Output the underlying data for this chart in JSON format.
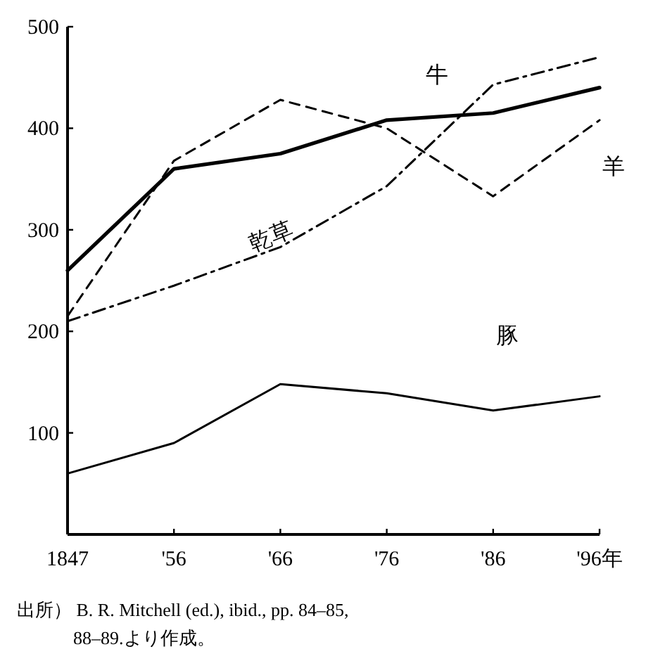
{
  "chart_data": {
    "type": "line",
    "categories": [
      "1847",
      "'56",
      "'66",
      "'76",
      "'86",
      "'96年"
    ],
    "series": [
      {
        "name": "牛",
        "color": "#000000",
        "line_style": "solid",
        "values": [
          260,
          360,
          375,
          408,
          415,
          440
        ]
      },
      {
        "name": "羊",
        "color": "#000000",
        "line_style": "dashed",
        "values": [
          215,
          368,
          428,
          400,
          333,
          408
        ]
      },
      {
        "name": "乾草",
        "color": "#000000",
        "line_style": "dashdot",
        "values": [
          210,
          245,
          283,
          343,
          443,
          470
        ]
      },
      {
        "name": "豚",
        "color": "#000000",
        "line_style": "solid",
        "values": [
          60,
          90,
          148,
          139,
          122,
          136
        ]
      }
    ],
    "ylim": [
      0,
      500
    ],
    "yticks": [
      100,
      200,
      300,
      400,
      500
    ],
    "grid": false,
    "legend": false,
    "marker": "none",
    "annotations": [
      "出所） B. R. Mitchell (ed.), ibid., pp. 84–85, 88–89.より作成。"
    ]
  }
}
